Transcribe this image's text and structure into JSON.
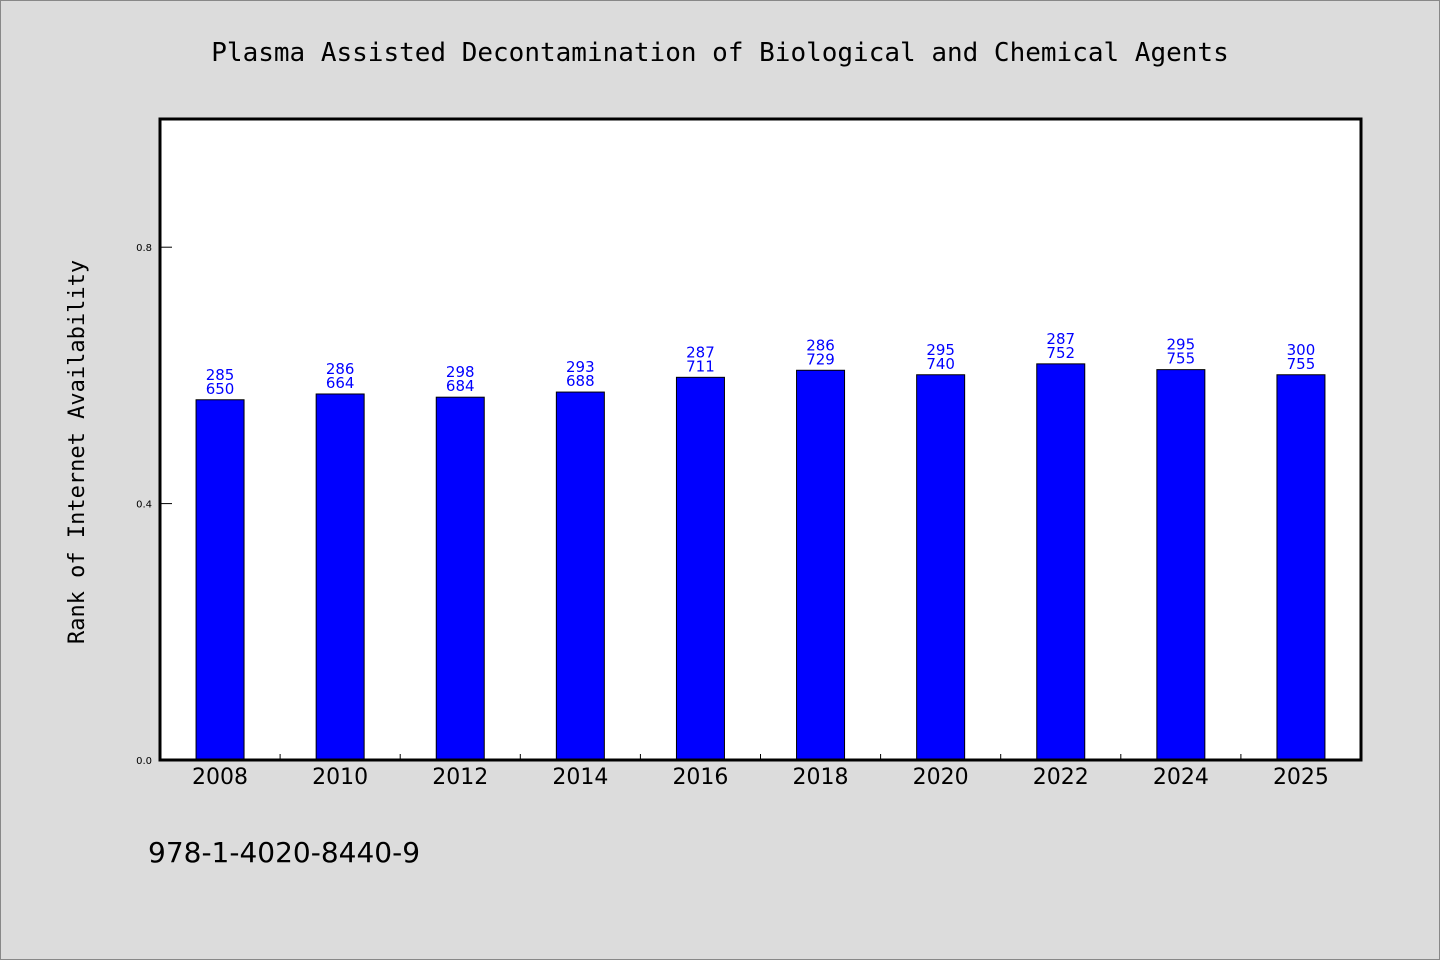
{
  "chart_data": {
    "type": "bar",
    "title": "Plasma Assisted Decontamination of Biological and Chemical Agents",
    "xlabel": "",
    "ylabel": "Rank of Internet Availability",
    "categories": [
      "2008",
      "2010",
      "2012",
      "2014",
      "2016",
      "2018",
      "2020",
      "2022",
      "2024",
      "2025"
    ],
    "values": [
      0.562,
      0.571,
      0.566,
      0.574,
      0.597,
      0.608,
      0.601,
      0.618,
      0.609,
      0.601
    ],
    "label_top": [
      "285",
      "286",
      "298",
      "293",
      "287",
      "286",
      "295",
      "287",
      "295",
      "300"
    ],
    "label_bottom": [
      "650",
      "664",
      "684",
      "688",
      "711",
      "729",
      "740",
      "752",
      "755",
      "755"
    ],
    "ylim": [
      0,
      1.0
    ],
    "yticks": [
      0.0,
      0.4,
      0.8
    ],
    "ytick_labels": [
      "0.0",
      "0.4",
      "0.8"
    ],
    "grid": false,
    "legend": "none",
    "colors": {
      "bar": "#0000ff",
      "data_label": "#0000ff",
      "plot_background": "#ffffff",
      "page_background": "#dcdcdc"
    }
  },
  "footer": {
    "isbn": "978-1-4020-8440-9"
  }
}
